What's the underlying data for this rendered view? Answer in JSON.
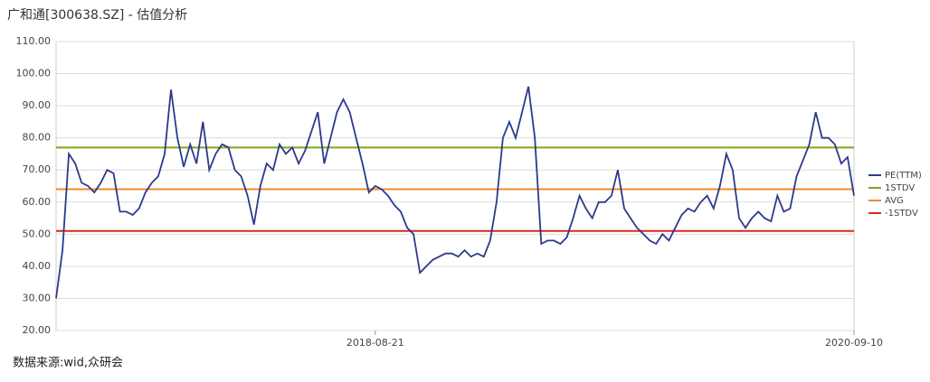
{
  "title": "广和通[300638.SZ] - 估值分析",
  "source": "数据来源:wid,众研会",
  "chart_data": {
    "type": "line",
    "categories": [
      null,
      null,
      null,
      null,
      null,
      null,
      null,
      null,
      null,
      null,
      null,
      null,
      null,
      null,
      null,
      null,
      null,
      null,
      null,
      null,
      null,
      null,
      null,
      null,
      null,
      null,
      null,
      null,
      null,
      null,
      null,
      null,
      null,
      null,
      null,
      null,
      null,
      null,
      null,
      null,
      null,
      null,
      null,
      null,
      null,
      null,
      null,
      null,
      null,
      null,
      "2018-08-21",
      null,
      null,
      null,
      null,
      null,
      null,
      null,
      null,
      null,
      null,
      null,
      null,
      null,
      null,
      null,
      null,
      null,
      null,
      null,
      null,
      null,
      null,
      null,
      null,
      null,
      null,
      null,
      null,
      null,
      null,
      null,
      null,
      null,
      null,
      null,
      null,
      null,
      null,
      null,
      null,
      null,
      null,
      null,
      null,
      null,
      null,
      null,
      null,
      null,
      null,
      null,
      null,
      null,
      null,
      null,
      null,
      null,
      null,
      null,
      null,
      null,
      null,
      null,
      null,
      null,
      null,
      null,
      null,
      null,
      null,
      null,
      null,
      null,
      null,
      "2020-09-10"
    ],
    "series": [
      {
        "name": "PE(TTM)",
        "color": "#2b3a8c",
        "values": [
          30,
          45,
          75,
          72,
          66,
          65,
          63,
          66,
          70,
          69,
          57,
          57,
          56,
          58,
          63,
          66,
          68,
          75,
          95,
          80,
          71,
          78,
          72,
          85,
          70,
          75,
          78,
          77,
          70,
          68,
          62,
          53,
          65,
          72,
          70,
          78,
          75,
          77,
          72,
          76,
          82,
          88,
          72,
          80,
          88,
          92,
          88,
          80,
          72,
          63,
          65,
          64,
          62,
          59,
          57,
          52,
          50,
          38,
          40,
          42,
          43,
          44,
          44,
          43,
          45,
          43,
          44,
          43,
          48,
          60,
          80,
          85,
          80,
          88,
          96,
          80,
          47,
          48,
          48,
          47,
          49,
          55,
          62,
          58,
          55,
          60,
          60,
          62,
          70,
          58,
          55,
          52,
          50,
          48,
          47,
          50,
          48,
          52,
          56,
          58,
          57,
          60,
          62,
          58,
          65,
          75,
          70,
          55,
          52,
          55,
          57,
          55,
          54,
          62,
          57,
          58,
          68,
          73,
          78,
          88,
          80,
          80,
          78,
          72,
          74,
          62
        ]
      }
    ],
    "reference_lines": [
      {
        "name": "1STDV",
        "color": "#7fa61c",
        "value": 77
      },
      {
        "name": "AVG",
        "color": "#f0892a",
        "value": 64
      },
      {
        "name": "-1STDV",
        "color": "#d8281e",
        "value": 51
      }
    ],
    "ylim": [
      20,
      110
    ],
    "yticks": [
      {
        "value": 20,
        "label": "20.00"
      },
      {
        "value": 30,
        "label": "30.00"
      },
      {
        "value": 40,
        "label": "40.00"
      },
      {
        "value": 50,
        "label": "50.00"
      },
      {
        "value": 60,
        "label": "60.00"
      },
      {
        "value": 70,
        "label": "70.00"
      },
      {
        "value": 80,
        "label": "80.00"
      },
      {
        "value": 90,
        "label": "90.00"
      },
      {
        "value": 100,
        "label": "100.00"
      },
      {
        "value": 110,
        "label": "110.00"
      }
    ],
    "grid": true
  }
}
